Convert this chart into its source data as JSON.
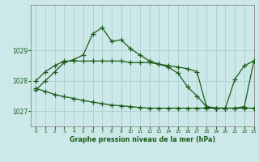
{
  "title": "Graphe pression niveau de la mer (hPa)",
  "bg_color": "#cce8e8",
  "grid_color": "#aad0d0",
  "line_color": "#1a5c1a",
  "xlim": [
    -0.5,
    23
  ],
  "ylim": [
    1026.5,
    1030.5
  ],
  "yticks": [
    1027,
    1028,
    1029
  ],
  "xticks": [
    0,
    1,
    2,
    3,
    4,
    5,
    6,
    7,
    8,
    9,
    10,
    11,
    12,
    13,
    14,
    15,
    16,
    17,
    18,
    19,
    20,
    21,
    22,
    23
  ],
  "hours": [
    0,
    1,
    2,
    3,
    4,
    5,
    6,
    7,
    8,
    9,
    10,
    11,
    12,
    13,
    14,
    15,
    16,
    17,
    18,
    19,
    20,
    21,
    22,
    23
  ],
  "series1": [
    1027.7,
    1028.0,
    1028.3,
    1028.6,
    1028.7,
    1028.85,
    1029.55,
    1029.75,
    1029.3,
    1029.35,
    1029.05,
    1028.85,
    1028.65,
    1028.55,
    1028.45,
    1028.25,
    1027.8,
    1027.5,
    1027.15,
    1027.1,
    1027.1,
    1028.05,
    1028.5,
    1028.65
  ],
  "series2": [
    1028.0,
    1028.3,
    1028.5,
    1028.65,
    1028.65,
    1028.65,
    1028.65,
    1028.65,
    1028.65,
    1028.65,
    1028.6,
    1028.6,
    1028.6,
    1028.55,
    1028.5,
    1028.45,
    1028.4,
    1028.3,
    1027.15,
    1027.1,
    1027.1,
    1027.1,
    1027.15,
    1028.65
  ],
  "series3": [
    1027.75,
    1027.65,
    1027.55,
    1027.48,
    1027.42,
    1027.35,
    1027.3,
    1027.25,
    1027.2,
    1027.18,
    1027.15,
    1027.12,
    1027.1,
    1027.1,
    1027.1,
    1027.1,
    1027.1,
    1027.1,
    1027.1,
    1027.1,
    1027.1,
    1027.1,
    1027.1,
    1027.1
  ]
}
